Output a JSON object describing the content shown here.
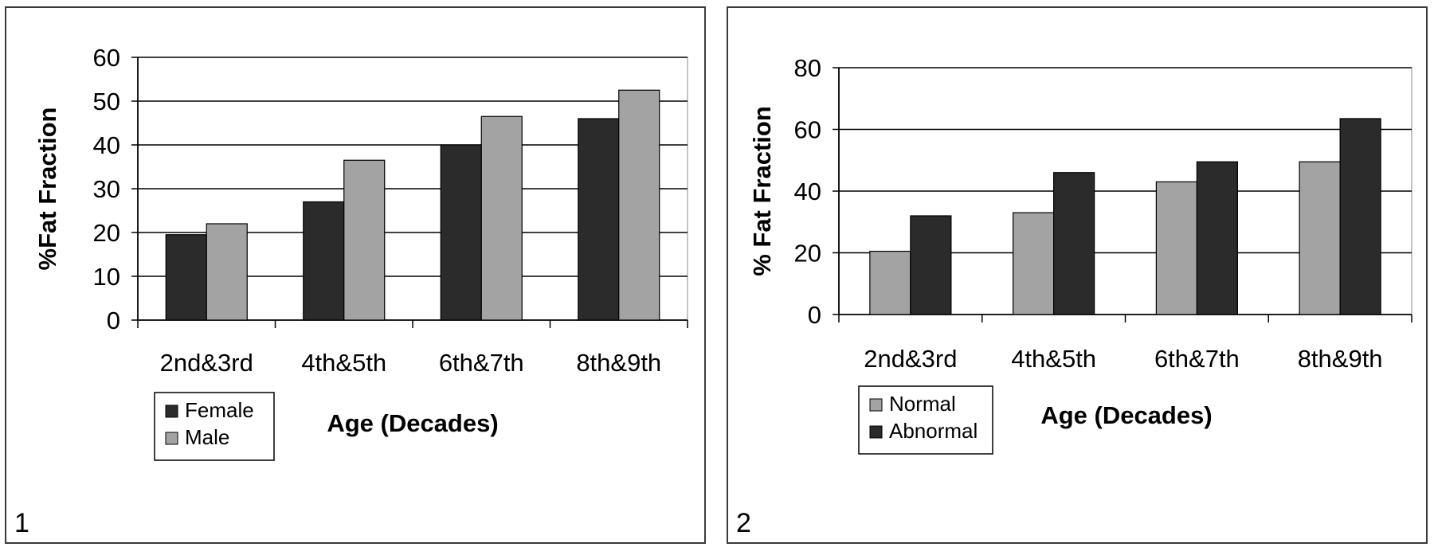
{
  "colors": {
    "dark": "#2b2b2b",
    "light": "#a3a3a3",
    "gridline": "#000000",
    "axis": "#000000"
  },
  "chart_data": [
    {
      "type": "bar",
      "panel_label": "1",
      "categories": [
        "2nd&3rd",
        "4th&5th",
        "6th&7th",
        "8th&9th"
      ],
      "series": [
        {
          "name": "Female",
          "color": "dark",
          "values": [
            19.5,
            27,
            40,
            46
          ]
        },
        {
          "name": "Male",
          "color": "light",
          "values": [
            22,
            36.5,
            46.5,
            52.5
          ]
        }
      ],
      "xlabel": "Age (Decades)",
      "ylabel": "%Fat Fraction",
      "ylim": [
        0,
        60
      ],
      "yticks": [
        "0",
        "10",
        "20",
        "30",
        "40",
        "50",
        "60"
      ],
      "grid": true,
      "legend": "bottom-left"
    },
    {
      "type": "bar",
      "panel_label": "2",
      "categories": [
        "2nd&3rd",
        "4th&5th",
        "6th&7th",
        "8th&9th"
      ],
      "series": [
        {
          "name": "Normal",
          "color": "light",
          "values": [
            20.5,
            33,
            43,
            49.5
          ]
        },
        {
          "name": "Abnormal",
          "color": "dark",
          "values": [
            32,
            46,
            49.5,
            63.5
          ]
        }
      ],
      "xlabel": "Age (Decades)",
      "ylabel": "% Fat Fraction",
      "ylim": [
        0,
        80
      ],
      "yticks": [
        "0",
        "20",
        "40",
        "60",
        "80"
      ],
      "grid": true,
      "legend": "bottom-left"
    }
  ]
}
